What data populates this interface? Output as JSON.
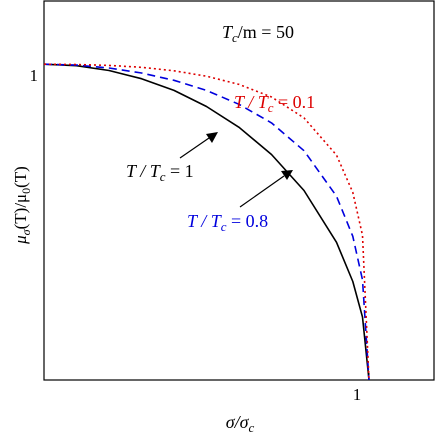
{
  "chart_data": {
    "type": "line",
    "xlim": [
      0,
      1.2
    ],
    "ylim": [
      0,
      1.2
    ],
    "grid": false,
    "xticks": [
      {
        "value": 1,
        "label": "1"
      }
    ],
    "yticks": [
      {
        "value": 1,
        "label": "1"
      }
    ],
    "xlabel": {
      "main": "σ/σ",
      "sub": "c"
    },
    "ylabel": {
      "mu": "μ",
      "sub1": "σ",
      "mid": "(T)/μ",
      "sub2": "0",
      "end": "(T)"
    },
    "annotation": {
      "main": "T",
      "sub": "c",
      "rest": "/m = 50"
    },
    "series": [
      {
        "label_parts": {
          "t": "T",
          "slash": " / ",
          "tc": "T",
          "sub": "c",
          "eq": " = 1"
        },
        "color": "#000000",
        "dash": "",
        "x": [
          0,
          0.1,
          0.2,
          0.3,
          0.4,
          0.5,
          0.6,
          0.7,
          0.8,
          0.9,
          0.95,
          0.98,
          1.0
        ],
        "y": [
          1.0,
          0.995,
          0.98,
          0.954,
          0.917,
          0.866,
          0.8,
          0.714,
          0.6,
          0.436,
          0.312,
          0.199,
          0.0
        ]
      },
      {
        "label_parts": {
          "t": "T",
          "slash": " / ",
          "tc": "T",
          "sub": "c",
          "eq": " = 0.8"
        },
        "color": "#0000dd",
        "dash": "8,5",
        "x": [
          0,
          0.1,
          0.2,
          0.3,
          0.4,
          0.5,
          0.6,
          0.7,
          0.8,
          0.9,
          0.95,
          0.98,
          1.0
        ],
        "y": [
          1.0,
          0.997,
          0.988,
          0.972,
          0.949,
          0.917,
          0.873,
          0.814,
          0.726,
          0.582,
          0.455,
          0.317,
          0.0
        ]
      },
      {
        "label_parts": {
          "t": "T",
          "slash": " / ",
          "tc": "T",
          "sub": "c",
          "eq": " = 0.1"
        },
        "color": "#dd0000",
        "dash": "2,3",
        "x": [
          0,
          0.1,
          0.2,
          0.3,
          0.4,
          0.5,
          0.6,
          0.7,
          0.8,
          0.9,
          0.95,
          0.98,
          1.0
        ],
        "y": [
          1.0,
          0.999,
          0.996,
          0.99,
          0.979,
          0.962,
          0.936,
          0.896,
          0.83,
          0.712,
          0.594,
          0.458,
          0.0
        ]
      }
    ]
  }
}
